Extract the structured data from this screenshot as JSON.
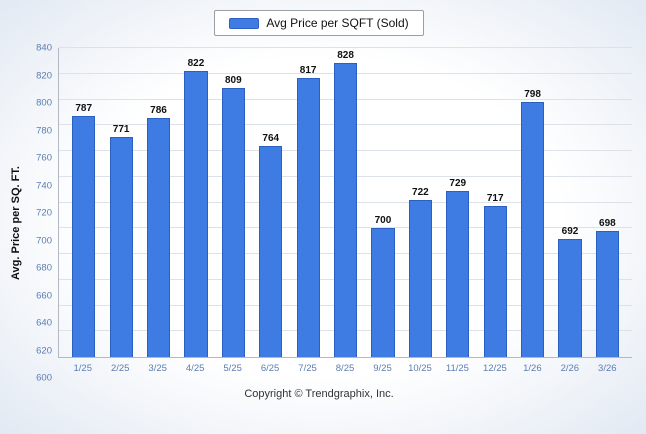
{
  "legend": {
    "label": "Avg Price per SQFT (Sold)"
  },
  "footer": "Copyright © Trendgraphix, Inc.",
  "colors": {
    "bar": "#3e7ce4",
    "bar_border": "#2c5fc2",
    "axis_label": "#5b7db1",
    "grid": "#dde1e8"
  },
  "chart_data": {
    "type": "bar",
    "title": "",
    "categories": [
      "1/25",
      "2/25",
      "3/25",
      "4/25",
      "5/25",
      "6/25",
      "7/25",
      "8/25",
      "9/25",
      "10/25",
      "11/25",
      "12/25",
      "1/26",
      "2/26",
      "3/26"
    ],
    "values": [
      787,
      771,
      786,
      822,
      809,
      764,
      817,
      828,
      700,
      722,
      729,
      717,
      798,
      692,
      698
    ],
    "xlabel": "",
    "ylabel": "Avg. Price per SQ. FT.",
    "ylim": [
      600,
      840
    ],
    "ytick_step": 20,
    "grid": true,
    "legend": [
      "Avg Price per SQFT (Sold)"
    ],
    "legend_position": "top",
    "bar_value_labels": true
  }
}
